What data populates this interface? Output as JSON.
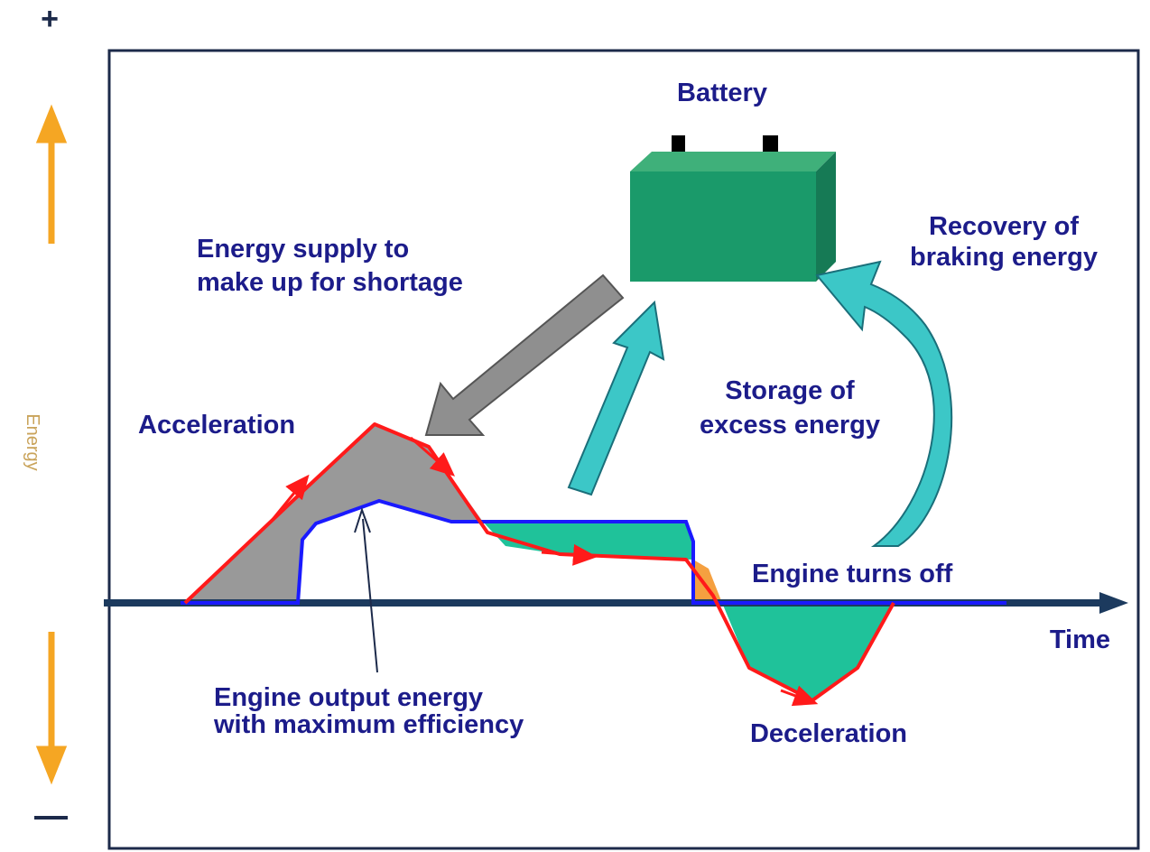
{
  "axis": {
    "plus": "+",
    "y_label": "Energy",
    "x_label": "Time"
  },
  "battery": {
    "label": "Battery"
  },
  "labels": {
    "supply": [
      "Energy  supply to",
      "make up for shortage"
    ],
    "recovery": [
      "Recovery of",
      "braking energy"
    ],
    "storage": [
      "Storage of",
      "excess energy"
    ],
    "acceleration": "Acceleration",
    "engine_off": "Engine turns off",
    "engine_output": [
      "Engine output energy",
      "with maximum efficiency"
    ],
    "deceleration": "Deceleration"
  }
}
